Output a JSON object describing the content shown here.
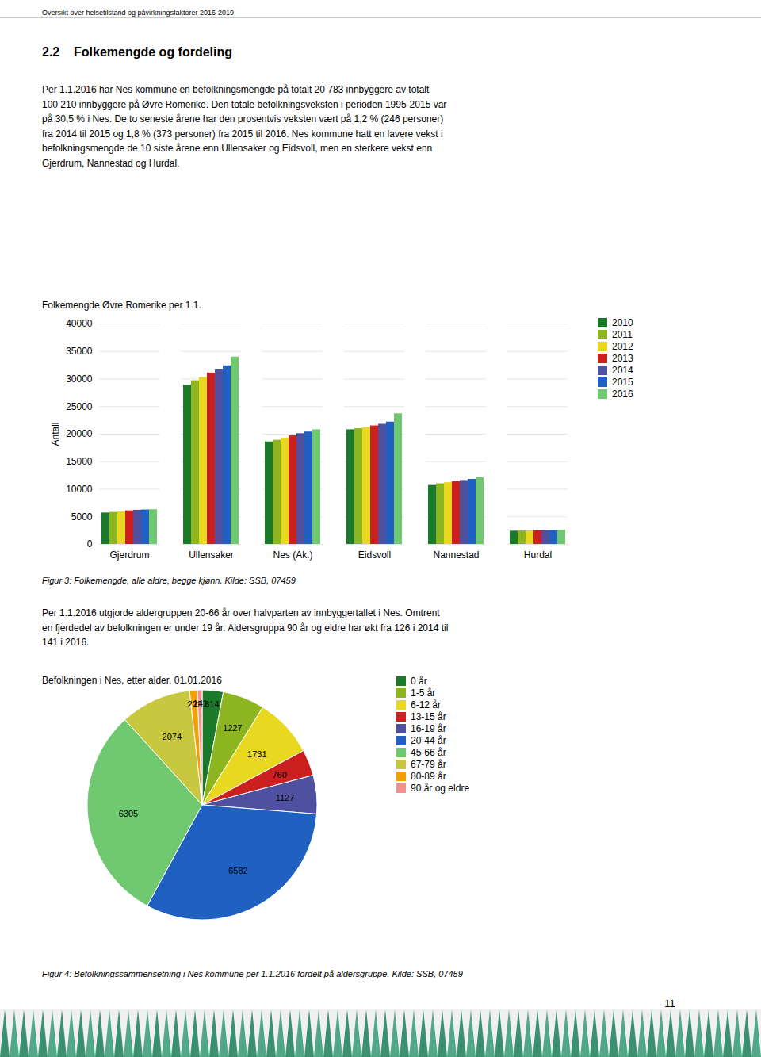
{
  "page_header": "Oversikt over helsetilstand og påvirkningsfaktorer 2016-2019",
  "section_title": "2.2    Folkemengde og fordeling",
  "body_text_1": "Per 1.1.2016 har Nes kommune en befolkningsmengde på totalt 20 783 innbyggere av totalt\n100 210 innbyggere på Øvre Romerike. Den totale befolkningsveksten i perioden 1995-2015 var\npå 30,5 % i Nes. De to seneste årene har den prosentvis veksten vært på 1,2 % (246 personer)\nfra 2014 til 2015 og 1,8 % (373 personer) fra 2015 til 2016. Nes kommune hatt en lavere vekst i\nbefolkningsmengde de 10 siste årene enn Ullensaker og Eidsvoll, men en sterkere vekst enn\nGjerdrum, Nannestad og Hurdal.",
  "body_text_2": "Per 1.1.2016 utgjorde aldergruppen 20-66 år over halvparten av innbyggertallet i Nes. Omtrent\nen fjerdedel av befolkningen er under 19 år. Aldersgruppa 90 år og eldre har økt fra 126 i 2014 til\n141 i 2016.",
  "page_number": "11",
  "chart_data": [
    {
      "type": "bar",
      "title": "Folkemengde Øvre Romerike per 1.1.",
      "ylabel": "Antall",
      "categories": [
        "Gjerdrum",
        "Ullensaker",
        "Nes (Ak.)",
        "Eidsvoll",
        "Nannestad",
        "Hurdal"
      ],
      "series": [
        {
          "name": "2010",
          "color": "#1a7a2a",
          "values": [
            5700,
            28900,
            18600,
            20800,
            10700,
            2400
          ]
        },
        {
          "name": "2011",
          "color": "#8db520",
          "values": [
            5800,
            29700,
            18900,
            21000,
            11000,
            2430
          ]
        },
        {
          "name": "2012",
          "color": "#e8d820",
          "values": [
            5900,
            30300,
            19300,
            21200,
            11200,
            2450
          ]
        },
        {
          "name": "2013",
          "color": "#cc2020",
          "values": [
            6100,
            31100,
            19700,
            21500,
            11400,
            2470
          ]
        },
        {
          "name": "2014",
          "color": "#5050a0",
          "values": [
            6200,
            31800,
            20100,
            21800,
            11600,
            2490
          ]
        },
        {
          "name": "2015",
          "color": "#2060c0",
          "values": [
            6250,
            32400,
            20400,
            22200,
            11800,
            2510
          ]
        },
        {
          "name": "2016",
          "color": "#70c870",
          "values": [
            6300,
            34000,
            20800,
            23700,
            12100,
            2570
          ]
        }
      ],
      "ylim": [
        0,
        40000
      ],
      "yticks": [
        0,
        5000,
        10000,
        15000,
        20000,
        25000,
        30000,
        35000,
        40000
      ],
      "grid": true,
      "legend": "right",
      "caption": "Figur 3: Folkemengde, alle aldre, begge kjønn. Kilde: SSB, 07459"
    },
    {
      "type": "pie",
      "title": "Befolkningen i Nes, etter alder, 01.01.2016",
      "categories": [
        "0 år",
        "1-5 år",
        "6-12 år",
        "13-15 år",
        "16-19 år",
        "20-44 år",
        "45-66 år",
        "67-79 år",
        "80-89 år",
        "90 år og eldre"
      ],
      "values": [
        614,
        1227,
        1731,
        760,
        1127,
        6582,
        6305,
        2074,
        222,
        141
      ],
      "colors": [
        "#1a7a2a",
        "#8db520",
        "#e8d820",
        "#cc2020",
        "#5050a0",
        "#2060c0",
        "#70c870",
        "#c8c840",
        "#f0a000",
        "#f09090"
      ],
      "data_labels": true,
      "legend": "right",
      "caption": "Figur 4: Befolkningssammensetning i Nes kommune per 1.1.2016 fordelt på aldersgruppe. Kilde: SSB, 07459"
    }
  ]
}
